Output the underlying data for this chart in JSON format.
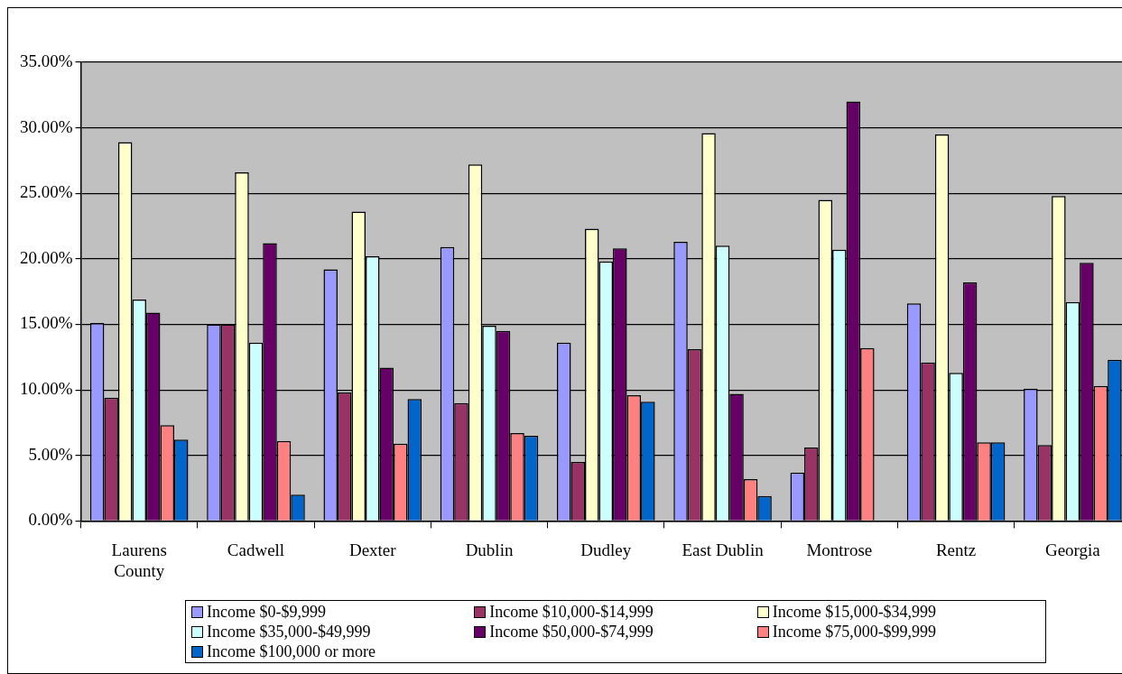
{
  "chart_data": {
    "type": "bar",
    "categories": [
      "Laurens County",
      "Cadwell",
      "Dexter",
      "Dublin",
      "Dudley",
      "East Dublin",
      "Montrose",
      "Rentz",
      "Georgia"
    ],
    "series": [
      {
        "name": "Income $0-$9,999",
        "color": "#9999ff",
        "values": [
          15.1,
          15.0,
          19.2,
          20.9,
          13.6,
          21.3,
          3.7,
          16.6,
          10.1
        ]
      },
      {
        "name": "Income $10,000-$14,999",
        "color": "#993366",
        "values": [
          9.4,
          15.0,
          9.8,
          9.0,
          4.5,
          13.1,
          5.6,
          12.1,
          5.8
        ]
      },
      {
        "name": "Income $15,000-$34,999",
        "color": "#ffffcc",
        "values": [
          28.9,
          26.6,
          23.6,
          27.2,
          22.3,
          29.6,
          24.5,
          29.5,
          24.8
        ]
      },
      {
        "name": "Income $35,000-$49,999",
        "color": "#ccffff",
        "values": [
          16.9,
          13.6,
          20.2,
          14.9,
          19.8,
          21.0,
          20.7,
          11.3,
          16.7
        ]
      },
      {
        "name": "Income $50,000-$74,999",
        "color": "#660066",
        "values": [
          15.9,
          21.2,
          11.7,
          14.5,
          20.8,
          9.7,
          32.0,
          18.2,
          19.7
        ]
      },
      {
        "name": "Income $75,000-$99,999",
        "color": "#ff8080",
        "values": [
          7.3,
          6.1,
          5.9,
          6.7,
          9.6,
          3.2,
          13.2,
          6.0,
          10.3
        ]
      },
      {
        "name": "Income $100,000 or more",
        "color": "#0066cc",
        "values": [
          6.2,
          2.0,
          9.3,
          6.5,
          9.1,
          1.9,
          null,
          6.0,
          12.3
        ]
      }
    ],
    "ylim": [
      0,
      35
    ],
    "yticks": [
      {
        "value": 0,
        "label": "0.00%"
      },
      {
        "value": 5,
        "label": "5.00%"
      },
      {
        "value": 10,
        "label": "10.00%"
      },
      {
        "value": 15,
        "label": "15.00%"
      },
      {
        "value": 20,
        "label": "20.00%"
      },
      {
        "value": 25,
        "label": "25.00%"
      },
      {
        "value": 30,
        "label": "30.00%"
      },
      {
        "value": 35,
        "label": "35.00%"
      }
    ],
    "grid": "y",
    "legend": "bottom"
  }
}
